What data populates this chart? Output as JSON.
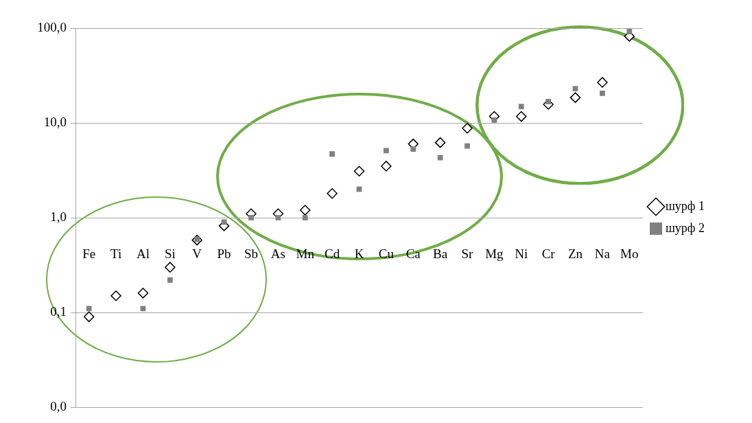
{
  "chart_data": {
    "type": "scatter",
    "categories": [
      "Fe",
      "Ti",
      "Al",
      "Si",
      "V",
      "Pb",
      "Sb",
      "As",
      "Mn",
      "Cd",
      "K",
      "Cu",
      "Ca",
      "Ba",
      "Sr",
      "Mg",
      "Ni",
      "Cr",
      "Zn",
      "Na",
      "Mo"
    ],
    "series": [
      {
        "name": "шурф 1",
        "color": "#000000",
        "marker": "diamond",
        "values": [
          0.09,
          0.15,
          0.16,
          0.3,
          0.58,
          0.82,
          1.1,
          1.1,
          1.2,
          1.8,
          3.1,
          3.5,
          6.0,
          6.2,
          8.8,
          11.7,
          11.7,
          15.7,
          18.5,
          26.8,
          82
        ]
      },
      {
        "name": "шурф 2",
        "color": "#808080",
        "marker": "square",
        "values": [
          0.11,
          null,
          0.11,
          0.22,
          0.59,
          0.9,
          1.0,
          1.0,
          1.0,
          4.7,
          2.0,
          5.1,
          5.3,
          4.3,
          5.7,
          10.7,
          14.9,
          16.8,
          23,
          20.5,
          92
        ]
      }
    ],
    "log": "y",
    "ylim": [
      0.01,
      100
    ],
    "yticks": [
      {
        "value": 0.01,
        "label": "0,0"
      },
      {
        "value": 0.1,
        "label": "0,1"
      },
      {
        "value": 1,
        "label": "1,0"
      },
      {
        "value": 10,
        "label": "10,0"
      },
      {
        "value": 100,
        "label": "100,0"
      }
    ],
    "grid": "y",
    "legend": "right"
  }
}
